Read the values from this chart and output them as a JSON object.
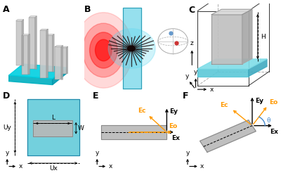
{
  "panel_labels": [
    "A",
    "B",
    "C",
    "D",
    "E",
    "F"
  ],
  "panel_label_color": "#000000",
  "panel_label_fontsize": 9,
  "panel_label_fontweight": "bold",
  "background_color": "#ffffff",
  "cyan_color": "#00c8d4",
  "blue_platform_color": "#5bc8d8",
  "gray_pillar_color": "#a0a0a0",
  "orange_color": "#ff9900",
  "red_color": "#cc0000",
  "annotation_fontsize": 6.5
}
